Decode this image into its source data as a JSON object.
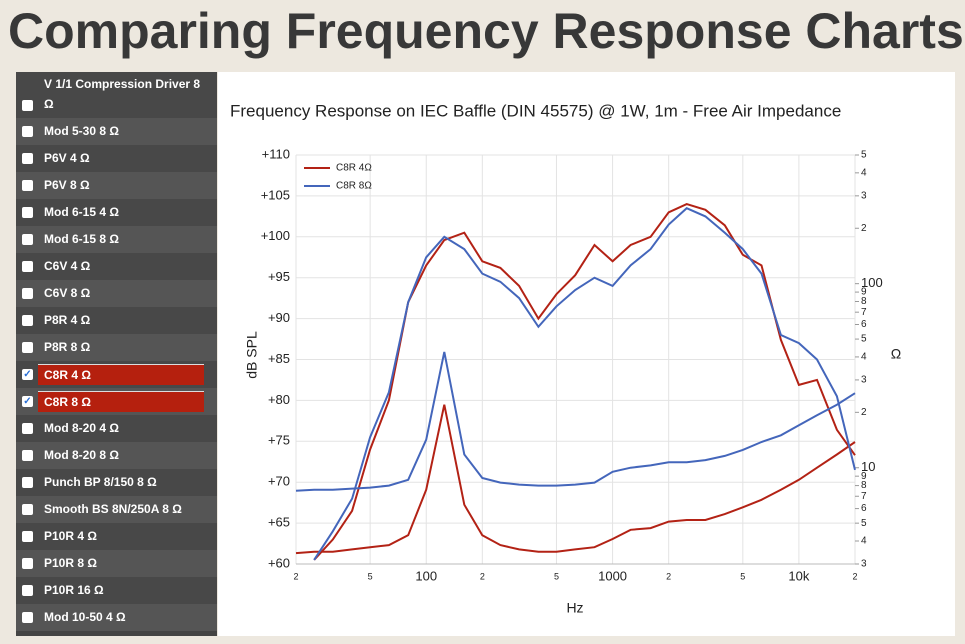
{
  "title": "Comparing Frequency Response Charts",
  "sidebar": {
    "items": [
      {
        "label": "V 1/1 Compression Driver 8 Ω",
        "checked": false
      },
      {
        "label": "Mod 5-30 8 Ω",
        "checked": false
      },
      {
        "label": "P6V 4 Ω",
        "checked": false
      },
      {
        "label": "P6V 8 Ω",
        "checked": false
      },
      {
        "label": "Mod 6-15 4 Ω",
        "checked": false
      },
      {
        "label": "Mod 6-15 8 Ω",
        "checked": false
      },
      {
        "label": "C6V 4 Ω",
        "checked": false
      },
      {
        "label": "C6V 8 Ω",
        "checked": false
      },
      {
        "label": "P8R 4 Ω",
        "checked": false
      },
      {
        "label": "P8R 8 Ω",
        "checked": false
      },
      {
        "label": "C8R 4 Ω",
        "checked": true
      },
      {
        "label": "C8R 8 Ω",
        "checked": true
      },
      {
        "label": "Mod 8-20 4 Ω",
        "checked": false
      },
      {
        "label": "Mod 8-20 8 Ω",
        "checked": false
      },
      {
        "label": "Punch BP 8/150 8 Ω",
        "checked": false
      },
      {
        "label": "Smooth BS 8N/250A 8 Ω",
        "checked": false
      },
      {
        "label": "P10R 4 Ω",
        "checked": false
      },
      {
        "label": "P10R 8 Ω",
        "checked": false
      },
      {
        "label": "P10R 16 Ω",
        "checked": false
      },
      {
        "label": "Mod 10-50 4 Ω",
        "checked": false
      }
    ]
  },
  "chart_data": {
    "type": "line",
    "title": "Frequency Response on IEC Baffle (DIN 45575) @ 1W, 1m - Free Air Impedance",
    "x_label": "Hz",
    "y_label": "dB SPL",
    "y2_label": "Ω",
    "x_log": true,
    "y2_log": true,
    "grid": true,
    "legend": "top-left",
    "x": [
      20,
      25,
      31.5,
      40,
      50,
      63,
      80,
      100,
      125,
      160,
      200,
      250,
      315,
      400,
      500,
      630,
      800,
      1000,
      1250,
      1600,
      2000,
      2500,
      3150,
      4000,
      5000,
      6300,
      8000,
      10000,
      12500,
      16000,
      20000
    ],
    "series": [
      {
        "name": "C8R 4Ω",
        "color": "#b32215",
        "values": [
          null,
          60.5,
          63,
          66.5,
          74,
          80,
          92,
          96.5,
          99.6,
          100.5,
          97,
          96.2,
          94,
          90,
          93,
          95.3,
          99,
          97,
          99,
          100,
          103,
          104,
          103.3,
          101.4,
          97.8,
          96.5,
          87.4,
          81.9,
          82.5,
          76.4,
          73.3
        ],
        "impedance": [
          3.44,
          3.5,
          3.5,
          3.6,
          3.7,
          3.8,
          4.3,
          7.6,
          22,
          6.3,
          4.3,
          3.8,
          3.6,
          3.5,
          3.5,
          3.6,
          3.7,
          4.1,
          4.6,
          4.7,
          5.1,
          5.2,
          5.2,
          5.6,
          6.1,
          6.7,
          7.6,
          8.6,
          10,
          11.8,
          13.8
        ]
      },
      {
        "name": "C8R 8Ω",
        "color": "#4466bb",
        "values": [
          null,
          60.5,
          64,
          68,
          75.5,
          81,
          92,
          97.5,
          100,
          98.5,
          95.5,
          94.5,
          92.5,
          89,
          91.5,
          93.5,
          95,
          94,
          96.5,
          98.5,
          101.5,
          103.5,
          102.5,
          100.5,
          98.5,
          95.5,
          88,
          87,
          85,
          80.5,
          71.5
        ],
        "impedance": [
          7.5,
          7.6,
          7.6,
          7.7,
          7.8,
          8,
          8.6,
          14.2,
          42.6,
          11.8,
          8.8,
          8.3,
          8.1,
          8,
          8,
          8.1,
          8.3,
          9.5,
          10,
          10.3,
          10.7,
          10.7,
          11,
          11.6,
          12.5,
          13.8,
          15,
          17,
          19.3,
          22,
          25.4
        ]
      }
    ],
    "xlim": [
      20,
      20000
    ],
    "xticks": [
      {
        "value": 20,
        "label": "2"
      },
      {
        "value": 50,
        "label": "5"
      },
      100,
      {
        "value": 200,
        "label": "2"
      },
      {
        "value": 500,
        "label": "5"
      },
      1000,
      {
        "value": 2000,
        "label": "2"
      },
      {
        "value": 5000,
        "label": "5"
      },
      {
        "value": 10000,
        "label": "10k"
      },
      {
        "value": 20000,
        "label": "2"
      }
    ],
    "ylim": [
      60,
      110
    ],
    "yticks": [
      {
        "value": 60,
        "label": "+60"
      },
      {
        "value": 65,
        "label": "+65"
      },
      {
        "value": 70,
        "label": "+70"
      },
      {
        "value": 75,
        "label": "+75"
      },
      {
        "value": 80,
        "label": "+80"
      },
      {
        "value": 85,
        "label": "+85"
      },
      {
        "value": 90,
        "label": "+90"
      },
      {
        "value": 95,
        "label": "+95"
      },
      {
        "value": 100,
        "label": "+100"
      },
      {
        "value": 105,
        "label": "+105"
      },
      {
        "value": 110,
        "label": "+110"
      }
    ],
    "y2lim": [
      3,
      500
    ],
    "y2ticks": [
      {
        "value": 500,
        "label": "5"
      },
      {
        "value": 400,
        "label": "4"
      },
      {
        "value": 300,
        "label": "3"
      },
      {
        "value": 200,
        "label": "2"
      },
      100,
      {
        "value": 90,
        "label": "9"
      },
      {
        "value": 80,
        "label": "8"
      },
      {
        "value": 70,
        "label": "7"
      },
      {
        "value": 60,
        "label": "6"
      },
      {
        "value": 50,
        "label": "5"
      },
      {
        "value": 40,
        "label": "4"
      },
      {
        "value": 30,
        "label": "3"
      },
      {
        "value": 20,
        "label": "2"
      },
      10,
      9,
      8,
      7,
      6,
      5,
      4,
      3
    ]
  }
}
